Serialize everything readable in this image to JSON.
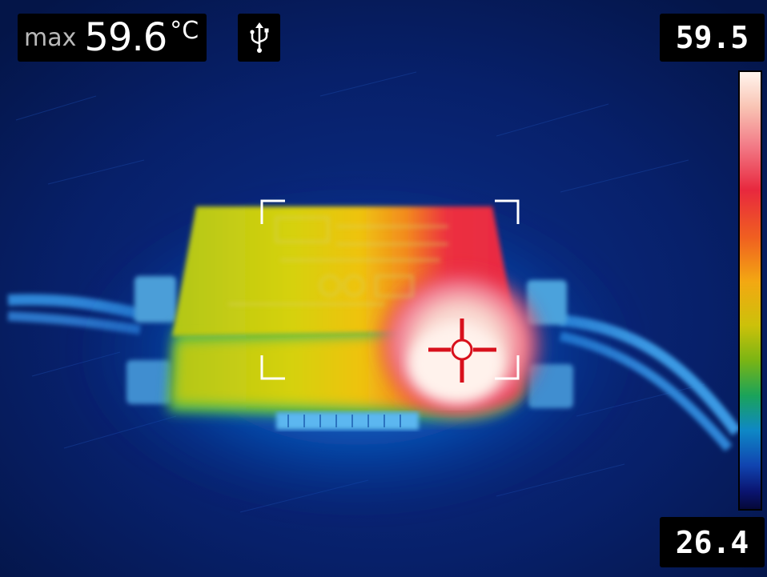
{
  "hud": {
    "max_label": "max",
    "max_value": "59.6",
    "max_unit": "°C",
    "usb_icon": "usb-icon"
  },
  "scale": {
    "top_value": "59.5",
    "bottom_value": "26.4"
  },
  "colors": {
    "background": "#061a55",
    "hotspot": "#fff0e8",
    "crosshair": "#d8101c",
    "device_warm": "#d4d20c"
  }
}
